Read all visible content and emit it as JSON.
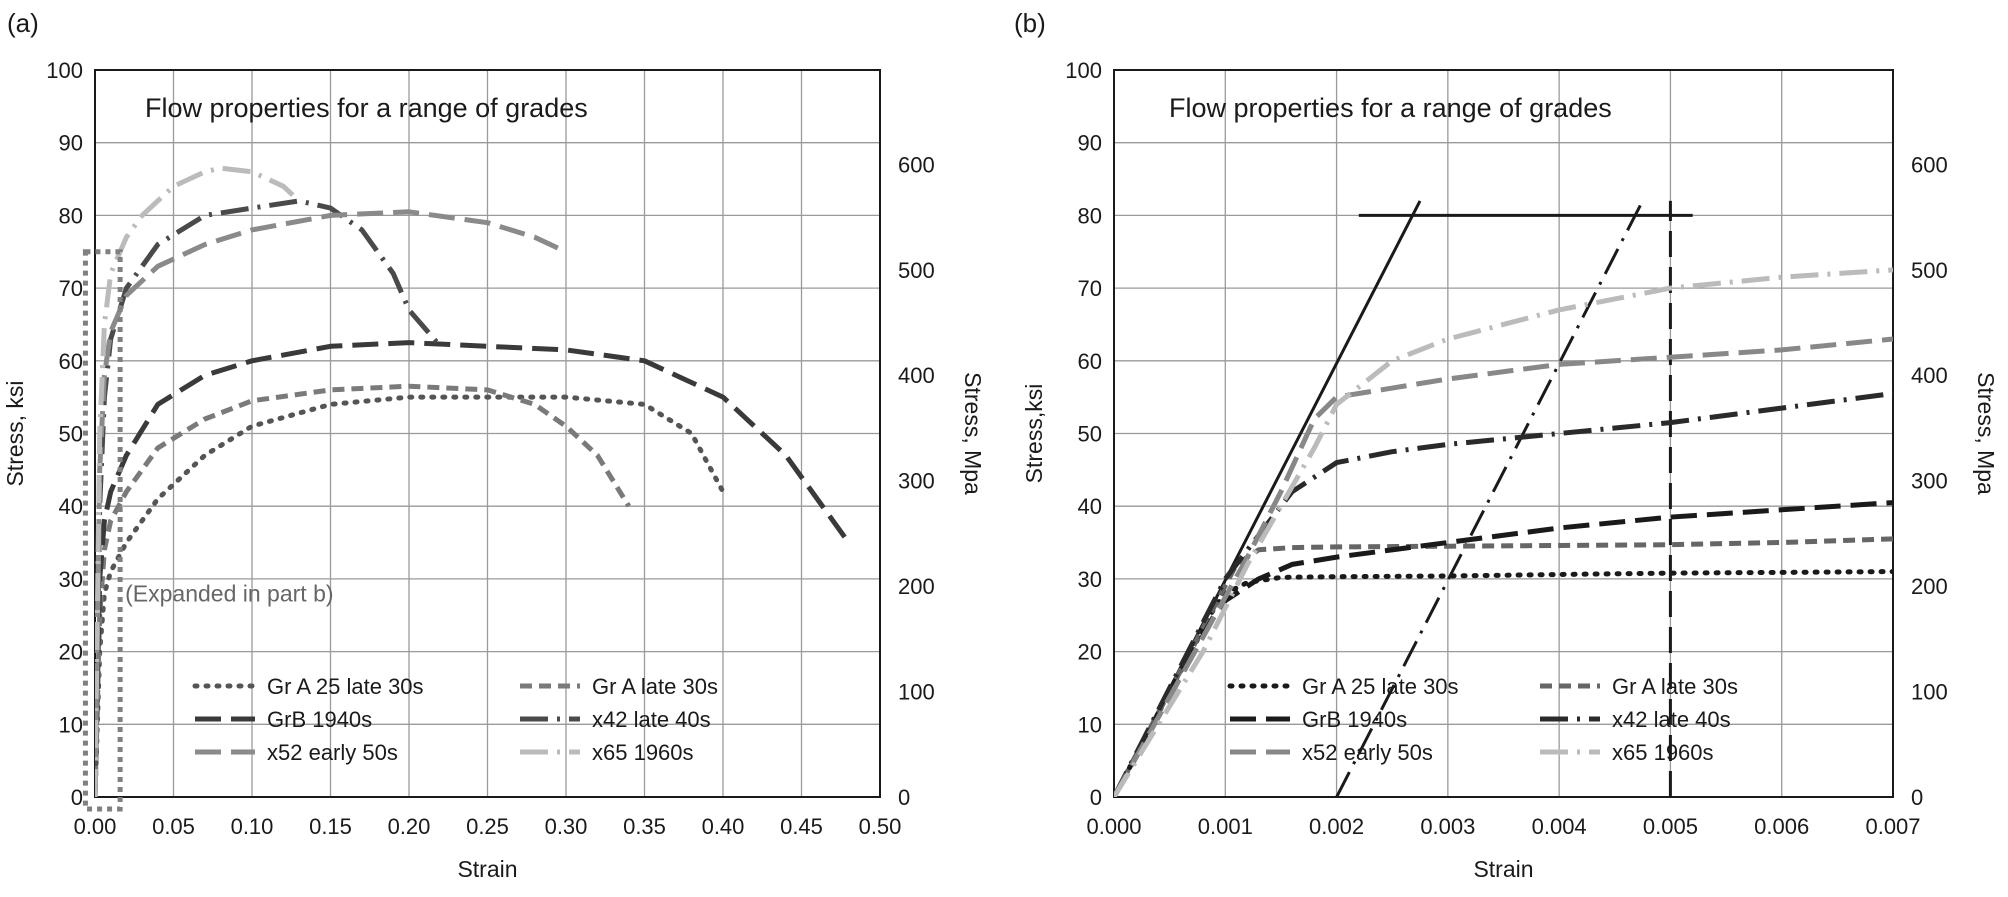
{
  "chart_data": [
    {
      "panel_label": "(a)",
      "type": "line",
      "title": "Flow properties for a range of grades",
      "xlabel": "Strain",
      "ylabel": "Stress, ksi",
      "y2label": "Stress, Mpa",
      "xlim": [
        0,
        0.5
      ],
      "ylim": [
        0,
        100
      ],
      "y2lim": [
        0,
        689.5
      ],
      "x_ticks": [
        "0.00",
        "0.05",
        "0.10",
        "0.15",
        "0.20",
        "0.25",
        "0.30",
        "0.35",
        "0.40",
        "0.45",
        "0.50"
      ],
      "y_ticks": [
        "0",
        "10",
        "20",
        "30",
        "40",
        "50",
        "60",
        "70",
        "80",
        "90",
        "100"
      ],
      "y2_ticks": [
        "0",
        "100",
        "200",
        "300",
        "400",
        "500",
        "600"
      ],
      "grid": true,
      "legend_position": "bottom-center",
      "annotation": "(Expanded in part b)",
      "series": [
        {
          "name": "Gr A 25 late 30s",
          "color": "#555555",
          "dash": "dot",
          "x": [
            0,
            0.003,
            0.006,
            0.01,
            0.02,
            0.04,
            0.07,
            0.1,
            0.15,
            0.2,
            0.25,
            0.3,
            0.35,
            0.38,
            0.4
          ],
          "y": [
            0,
            20,
            28,
            31,
            35,
            41,
            47,
            51,
            54,
            55,
            55,
            55,
            54,
            50,
            42
          ]
        },
        {
          "name": "Gr A  late 30s",
          "color": "#7a7a7a",
          "dash": "dash",
          "x": [
            0,
            0.003,
            0.006,
            0.01,
            0.02,
            0.04,
            0.07,
            0.1,
            0.15,
            0.2,
            0.25,
            0.28,
            0.3,
            0.32,
            0.34
          ],
          "y": [
            0,
            25,
            34,
            38,
            42,
            48,
            52,
            54.5,
            56,
            56.5,
            56,
            54,
            51,
            47,
            40
          ]
        },
        {
          "name": "GrB 1940s",
          "color": "#3a3a3a",
          "dash": "longdash",
          "x": [
            0,
            0.003,
            0.006,
            0.01,
            0.02,
            0.04,
            0.07,
            0.1,
            0.15,
            0.2,
            0.25,
            0.3,
            0.35,
            0.4,
            0.44,
            0.48
          ],
          "y": [
            0,
            30,
            38,
            42,
            47,
            54,
            58,
            60,
            62,
            62.5,
            62,
            61.5,
            60,
            55,
            47,
            35
          ]
        },
        {
          "name": "x42 late 40s",
          "color": "#4a4a4a",
          "dash": "dashdot",
          "x": [
            0,
            0.003,
            0.006,
            0.01,
            0.02,
            0.04,
            0.07,
            0.1,
            0.13,
            0.15,
            0.17,
            0.19,
            0.2,
            0.22
          ],
          "y": [
            0,
            40,
            55,
            63,
            70,
            76,
            80,
            81,
            82,
            81,
            78,
            72,
            67,
            62
          ]
        },
        {
          "name": "x52 early 50s",
          "color": "#8a8a8a",
          "dash": "longdash",
          "x": [
            0,
            0.003,
            0.006,
            0.01,
            0.02,
            0.04,
            0.07,
            0.1,
            0.15,
            0.2,
            0.25,
            0.28,
            0.3
          ],
          "y": [
            0,
            45,
            58,
            64,
            69,
            73,
            76,
            78,
            80,
            80.5,
            79,
            77,
            75
          ]
        },
        {
          "name": "x65 1960s",
          "color": "#bbbbbb",
          "dash": "dashdot",
          "x": [
            0,
            0.003,
            0.006,
            0.01,
            0.02,
            0.03,
            0.05,
            0.07,
            0.08,
            0.1,
            0.12,
            0.13
          ],
          "y": [
            0,
            50,
            65,
            72,
            77,
            80,
            84,
            86,
            86.5,
            86,
            84,
            82
          ]
        }
      ]
    },
    {
      "panel_label": "(b)",
      "type": "line",
      "title": "Flow properties for a range of grades",
      "xlabel": "Strain",
      "ylabel": "Stress,ksi",
      "y2label": "Stress, Mpa",
      "xlim": [
        0,
        0.007
      ],
      "ylim": [
        0,
        100
      ],
      "y2lim": [
        0,
        689.5
      ],
      "x_ticks": [
        "0.000",
        "0.001",
        "0.002",
        "0.003",
        "0.004",
        "0.005",
        "0.006",
        "0.007"
      ],
      "y_ticks": [
        "0",
        "10",
        "20",
        "30",
        "40",
        "50",
        "60",
        "70",
        "80",
        "90",
        "100"
      ],
      "y2_ticks": [
        "0",
        "100",
        "200",
        "300",
        "400",
        "500",
        "600"
      ],
      "grid": true,
      "legend_position": "bottom-center",
      "series": [
        {
          "name": "Gr A 25 late 30s",
          "color": "#1a1a1a",
          "dash": "dot",
          "x": [
            0,
            0.0009,
            0.001,
            0.0012,
            0.0015,
            0.002,
            0.003,
            0.004,
            0.005,
            0.006,
            0.007
          ],
          "y": [
            0,
            26,
            28,
            29.5,
            30.2,
            30.3,
            30.4,
            30.6,
            30.8,
            30.9,
            31
          ]
        },
        {
          "name": "Gr A late 30s",
          "color": "#666666",
          "dash": "dash",
          "x": [
            0,
            0.0011,
            0.0013,
            0.0016,
            0.002,
            0.003,
            0.004,
            0.005,
            0.006,
            0.007
          ],
          "y": [
            0,
            32,
            34,
            34.3,
            34.4,
            34.5,
            34.6,
            34.7,
            35,
            35.5
          ]
        },
        {
          "name": "GrB 1940s",
          "color": "#1a1a1a",
          "dash": "longdash",
          "x": [
            0,
            0.0009,
            0.001,
            0.0011,
            0.0013,
            0.0016,
            0.002,
            0.003,
            0.004,
            0.005,
            0.006,
            0.007
          ],
          "y": [
            0,
            25,
            27,
            28,
            30,
            32,
            33,
            35,
            37,
            38.5,
            39.5,
            40.5
          ]
        },
        {
          "name": "x42 late 40s",
          "color": "#2a2a2a",
          "dash": "dashdot",
          "x": [
            0,
            0.001,
            0.0013,
            0.0016,
            0.002,
            0.0025,
            0.003,
            0.004,
            0.005,
            0.006,
            0.007
          ],
          "y": [
            0,
            30,
            36,
            42,
            46,
            47.5,
            48.5,
            50,
            51.5,
            53.5,
            55.5
          ]
        },
        {
          "name": "x52 early 50s",
          "color": "#888888",
          "dash": "longdash",
          "x": [
            0,
            0.0008,
            0.0012,
            0.0015,
            0.0018,
            0.002,
            0.003,
            0.004,
            0.005,
            0.006,
            0.007
          ],
          "y": [
            0,
            22,
            33,
            42,
            52,
            55,
            57.5,
            59.5,
            60.5,
            61.5,
            63
          ]
        },
        {
          "name": "x65 1960s",
          "color": "#bbbbbb",
          "dash": "dashdot",
          "x": [
            0,
            0.0008,
            0.0012,
            0.0015,
            0.0018,
            0.002,
            0.0025,
            0.003,
            0.004,
            0.005,
            0.006,
            0.007
          ],
          "y": [
            0,
            20,
            32,
            40,
            48,
            54,
            60,
            63,
            67,
            70,
            71.5,
            72.5
          ]
        }
      ],
      "reference_lines": [
        {
          "kind": "elastic-line",
          "color": "#1a1a1a",
          "dash": "solid",
          "x": [
            0,
            0.00275
          ],
          "y": [
            0,
            82
          ]
        },
        {
          "kind": "offset-line",
          "color": "#1a1a1a",
          "dash": "dashdot",
          "x": [
            0.002,
            0.00475
          ],
          "y": [
            0,
            82
          ]
        },
        {
          "kind": "horizontal-line",
          "color": "#1a1a1a",
          "dash": "solid",
          "x": [
            0.0022,
            0.0052
          ],
          "y": [
            80,
            80
          ]
        },
        {
          "kind": "vertical-line",
          "color": "#1a1a1a",
          "dash": "longdash",
          "x": [
            0.005,
            0.005
          ],
          "y": [
            0,
            82
          ]
        }
      ]
    }
  ]
}
